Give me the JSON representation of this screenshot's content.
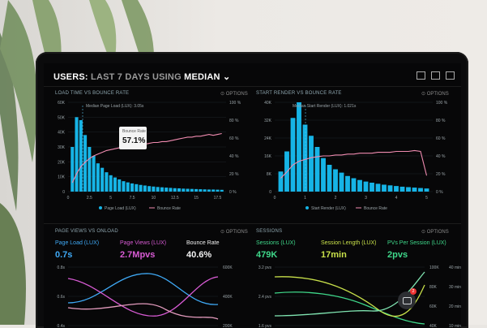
{
  "header": {
    "prefix": "USERS:",
    "period": "LAST 7 DAYS",
    "using": "USING",
    "stat": "MEDIAN"
  },
  "panels": {
    "load": {
      "title": "LOAD TIME VS BOUNCE RATE",
      "options": "OPTIONS",
      "annotation": "Median Page Load (LUX): 3.05s",
      "yticks_left": [
        "60K",
        "50K",
        "40K",
        "30K",
        "20K",
        "10K",
        "0"
      ],
      "yticks_right": [
        "100 %",
        "80 %",
        "60 %",
        "40 %",
        "20 %",
        "0 %"
      ],
      "xticks": [
        "0",
        "2.5",
        "5",
        "7.5",
        "10",
        "12.5",
        "15",
        "17.5"
      ],
      "legend": [
        "Page Load (LUX)",
        "Bounce Rate"
      ],
      "callout": {
        "label": "Bounce Rate",
        "value": "57.1%"
      }
    },
    "render": {
      "title": "START RENDER VS BOUNCE RATE",
      "options": "OPTIONS",
      "annotation": "Median Start Render (LUX): 1.021s",
      "yticks_left": [
        "40K",
        "32K",
        "24K",
        "16K",
        "8K",
        "0"
      ],
      "yticks_right": [
        "100 %",
        "80 %",
        "60 %",
        "40 %",
        "20 %",
        "0 %"
      ],
      "xticks": [
        "0",
        "1",
        "2",
        "3",
        "4",
        "5"
      ],
      "legend": [
        "Start Render (LUX)",
        "Bounce Rate"
      ]
    },
    "pageviews": {
      "title": "PAGE VIEWS VS ONLOAD",
      "options": "OPTIONS",
      "kpis": [
        {
          "label": "Page Load (LUX)",
          "value": "0.7s",
          "color": "#3fa9f5"
        },
        {
          "label": "Page Views (LUX)",
          "value": "2.7Mpvs",
          "color": "#d85bd4"
        },
        {
          "label": "Bounce Rate",
          "value": "40.6%",
          "color": "#f2f2f2"
        }
      ],
      "yticks_left": [
        "0.8s",
        "0.6s",
        "0.4s"
      ],
      "yticks_right": [
        "600K",
        "400K",
        "200K"
      ]
    },
    "sessions": {
      "title": "SESSIONS",
      "options": "OPTIONS",
      "kpis": [
        {
          "label": "Sessions (LUX)",
          "value": "479K",
          "color": "#3fd88a"
        },
        {
          "label": "Session Length (LUX)",
          "value": "17min",
          "color": "#c8e04a"
        },
        {
          "label": "PVs Per Session (LUX)",
          "value": "2pvs",
          "color": "#3fd88a"
        }
      ],
      "yticks_left": [
        "3.2 pvs",
        "2.4 pvs",
        "1.6 pvs"
      ],
      "yticks_right1": [
        "100K",
        "80K",
        "60K",
        "40K"
      ],
      "yticks_right2": [
        "40 min",
        "30 min",
        "20 min",
        "10 min"
      ]
    }
  },
  "chart_data": [
    {
      "type": "bar",
      "title": "LOAD TIME VS BOUNCE RATE",
      "x": [
        0.5,
        1,
        1.5,
        2,
        2.5,
        3,
        3.5,
        4,
        4.5,
        5,
        5.5,
        6,
        6.5,
        7,
        7.5,
        8,
        8.5,
        9,
        9.5,
        10,
        10.5,
        11,
        11.5,
        12,
        12.5,
        13,
        13.5,
        14,
        14.5,
        15,
        15.5,
        16,
        16.5,
        17,
        17.5,
        18
      ],
      "series": [
        {
          "name": "Page Load (LUX)",
          "values": [
            30000,
            50000,
            48000,
            38000,
            30000,
            24000,
            19000,
            16000,
            13000,
            11000,
            9500,
            8200,
            7000,
            6200,
            5500,
            5000,
            4500,
            4100,
            3700,
            3400,
            3100,
            2900,
            2700,
            2500,
            2300,
            2200,
            2000,
            1900,
            1800,
            1700,
            1600,
            1500,
            1400,
            1400,
            1300,
            1200
          ]
        },
        {
          "name": "Bounce Rate",
          "values": [
            10,
            20,
            28,
            33,
            37,
            40,
            42,
            44,
            46,
            47,
            48,
            49,
            50,
            51,
            51,
            52,
            52,
            53,
            54,
            55,
            55,
            56,
            56,
            57,
            58,
            59,
            60,
            61,
            61,
            62,
            62,
            63,
            64,
            63,
            64,
            65
          ]
        }
      ],
      "ylim": [
        0,
        60000
      ],
      "ylim_right": [
        0,
        100
      ]
    },
    {
      "type": "bar",
      "title": "START RENDER VS BOUNCE RATE",
      "x": [
        0.2,
        0.4,
        0.6,
        0.8,
        1,
        1.2,
        1.4,
        1.6,
        1.8,
        2,
        2.2,
        2.4,
        2.6,
        2.8,
        3,
        3.2,
        3.4,
        3.6,
        3.8,
        4,
        4.2,
        4.4,
        4.6,
        4.8,
        5
      ],
      "series": [
        {
          "name": "Start Render (LUX)",
          "values": [
            9000,
            18000,
            33000,
            40000,
            30000,
            25000,
            20000,
            15000,
            12000,
            10000,
            8500,
            7000,
            6000,
            5200,
            4500,
            4000,
            3500,
            3100,
            2800,
            2500,
            2200,
            2000,
            1800,
            1600,
            1400
          ]
        },
        {
          "name": "Bounce Rate",
          "values": [
            15,
            22,
            30,
            34,
            36,
            38,
            39,
            40,
            40,
            41,
            41,
            42,
            42,
            43,
            43,
            43,
            44,
            44,
            44,
            45,
            45,
            45,
            46,
            45,
            18
          ]
        }
      ],
      "ylim": [
        0,
        40000
      ],
      "ylim_right": [
        0,
        100
      ]
    }
  ]
}
